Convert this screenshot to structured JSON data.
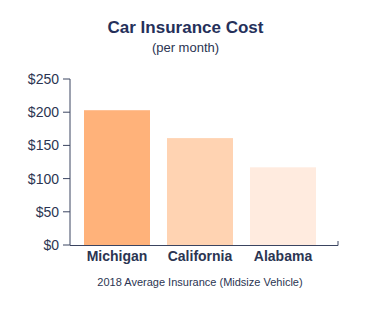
{
  "chart_data": {
    "type": "bar",
    "title": "Car Insurance Cost",
    "subtitle": "(per month)",
    "x_label": "2018 Average Insurance (Midsize Vehicle)",
    "categories": [
      "Michigan",
      "California",
      "Alabama"
    ],
    "values": [
      203,
      161,
      117
    ],
    "colors": [
      "#ffb27a",
      "#ffd3b2",
      "#ffebdf"
    ],
    "ylim": [
      0,
      250
    ],
    "yticks": [
      {
        "value": 0,
        "label": "$0"
      },
      {
        "value": 50,
        "label": "$50"
      },
      {
        "value": 100,
        "label": "$100"
      },
      {
        "value": 150,
        "label": "$150"
      },
      {
        "value": 200,
        "label": "$200"
      },
      {
        "value": 250,
        "label": "$250"
      }
    ],
    "grid": false
  }
}
